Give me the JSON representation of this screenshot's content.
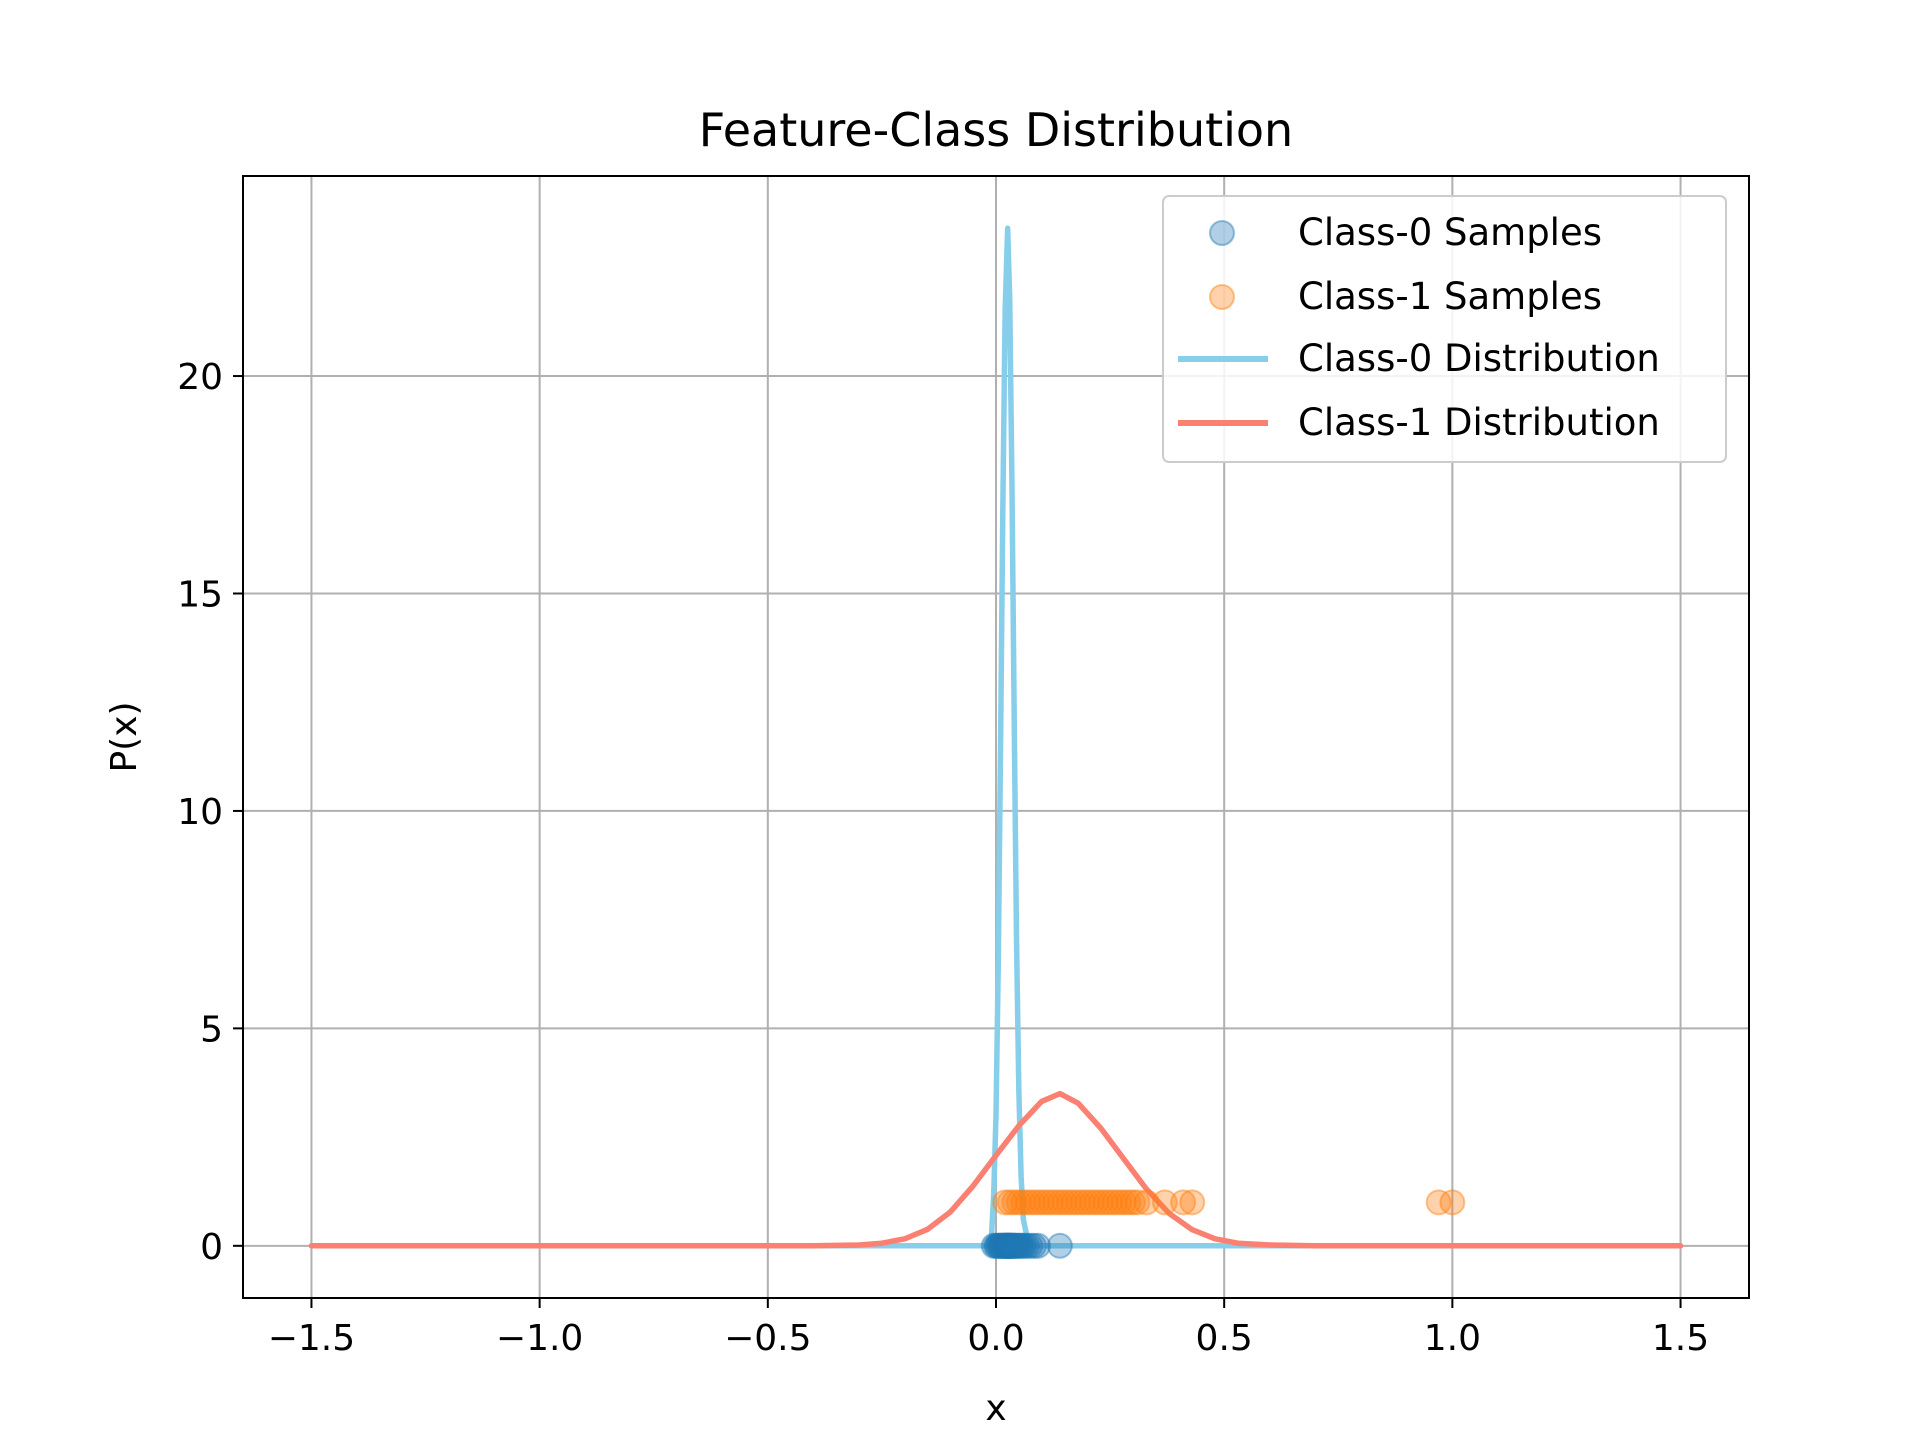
{
  "chart_data": {
    "type": "scatter",
    "title": "Feature-Class Distribution",
    "xlabel": "x",
    "ylabel": "P(x)",
    "xlim": [
      -1.65,
      1.65
    ],
    "ylim": [
      -1.2,
      24.6
    ],
    "x_ticks": [
      -1.5,
      -1.0,
      -0.5,
      0.0,
      0.5,
      1.0,
      1.5
    ],
    "x_tick_labels": [
      "−1.5",
      "−1.0",
      "−0.5",
      "0.0",
      "0.5",
      "1.0",
      "1.5"
    ],
    "y_ticks": [
      0,
      5,
      10,
      15,
      20
    ],
    "y_tick_labels": [
      "0",
      "5",
      "10",
      "15",
      "20"
    ],
    "grid": true,
    "legend_position": "top-right",
    "series": [
      {
        "name": "Class-0 Samples",
        "kind": "scatter",
        "color": "#1f77b4",
        "alpha": 0.35,
        "y_value": 0,
        "x": [
          -0.005,
          0.0,
          0.003,
          0.006,
          0.009,
          0.011,
          0.013,
          0.015,
          0.017,
          0.018,
          0.02,
          0.021,
          0.022,
          0.023,
          0.024,
          0.025,
          0.026,
          0.027,
          0.028,
          0.029,
          0.03,
          0.031,
          0.032,
          0.033,
          0.035,
          0.037,
          0.039,
          0.041,
          0.043,
          0.046,
          0.049,
          0.053,
          0.057,
          0.062,
          0.068,
          0.075,
          0.083,
          0.092,
          0.14
        ]
      },
      {
        "name": "Class-1 Samples",
        "kind": "scatter",
        "color": "#ff7f0e",
        "alpha": 0.35,
        "y_value": 1,
        "x": [
          0.02,
          0.03,
          0.04,
          0.05,
          0.06,
          0.07,
          0.08,
          0.09,
          0.1,
          0.11,
          0.12,
          0.13,
          0.14,
          0.15,
          0.16,
          0.17,
          0.18,
          0.19,
          0.2,
          0.21,
          0.22,
          0.23,
          0.24,
          0.25,
          0.26,
          0.27,
          0.28,
          0.29,
          0.3,
          0.31,
          0.33,
          0.37,
          0.41,
          0.43,
          0.97,
          1.0
        ]
      },
      {
        "name": "Class-0 Distribution",
        "kind": "line",
        "color": "#87ceeb",
        "points": [
          [
            -1.5,
            0
          ],
          [
            -0.02,
            0
          ],
          [
            -0.01,
            0.2
          ],
          [
            -0.005,
            1.2
          ],
          [
            0.0,
            3.0
          ],
          [
            0.005,
            6.5
          ],
          [
            0.01,
            11.5
          ],
          [
            0.015,
            17.0
          ],
          [
            0.02,
            21.5
          ],
          [
            0.0255,
            23.4
          ],
          [
            0.03,
            21.8
          ],
          [
            0.035,
            17.5
          ],
          [
            0.04,
            12.0
          ],
          [
            0.045,
            7.0
          ],
          [
            0.05,
            3.6
          ],
          [
            0.055,
            1.6
          ],
          [
            0.06,
            0.6
          ],
          [
            0.07,
            0.1
          ],
          [
            0.08,
            0
          ],
          [
            1.5,
            0
          ]
        ]
      },
      {
        "name": "Class-1 Distribution",
        "kind": "line",
        "color": "#fa8072",
        "points": [
          [
            -1.5,
            0
          ],
          [
            -0.5,
            0
          ],
          [
            -0.4,
            0.0
          ],
          [
            -0.3,
            0.02
          ],
          [
            -0.25,
            0.06
          ],
          [
            -0.2,
            0.16
          ],
          [
            -0.15,
            0.38
          ],
          [
            -0.1,
            0.78
          ],
          [
            -0.05,
            1.38
          ],
          [
            0.0,
            2.08
          ],
          [
            0.05,
            2.76
          ],
          [
            0.1,
            3.32
          ],
          [
            0.14,
            3.5
          ],
          [
            0.18,
            3.28
          ],
          [
            0.23,
            2.7
          ],
          [
            0.28,
            2.0
          ],
          [
            0.33,
            1.3
          ],
          [
            0.38,
            0.74
          ],
          [
            0.43,
            0.37
          ],
          [
            0.48,
            0.16
          ],
          [
            0.53,
            0.06
          ],
          [
            0.6,
            0.02
          ],
          [
            0.7,
            0.0
          ],
          [
            1.5,
            0
          ]
        ]
      }
    ]
  }
}
